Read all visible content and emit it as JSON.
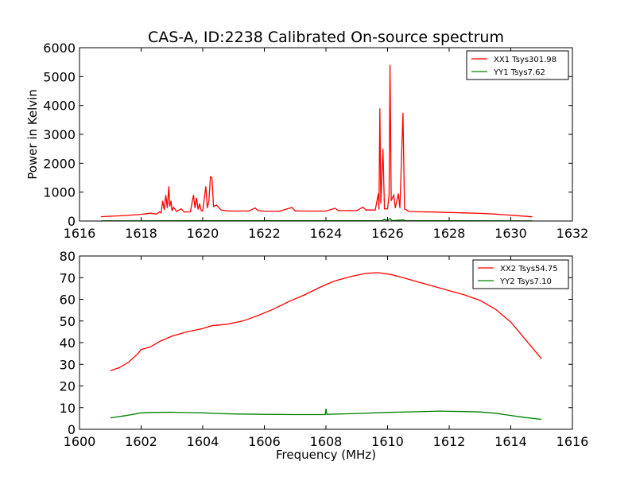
{
  "chart_data": [
    {
      "type": "line",
      "title": "CAS-A, ID:2238 Calibrated On-source spectrum",
      "xlabel": "",
      "ylabel": "Power in Kelvin",
      "xlim": [
        1616,
        1632
      ],
      "ylim": [
        0,
        6000
      ],
      "xticks": [
        1616,
        1618,
        1620,
        1622,
        1624,
        1626,
        1628,
        1630,
        1632
      ],
      "yticks": [
        0,
        1000,
        2000,
        3000,
        4000,
        5000,
        6000
      ],
      "legend_position": "top-right",
      "grid": false,
      "series": [
        {
          "name": "XX1 Tsys301.98",
          "color": "#ff0000",
          "points": [
            [
              1616.7,
              150
            ],
            [
              1617.0,
              165
            ],
            [
              1617.5,
              190
            ],
            [
              1618.0,
              230
            ],
            [
              1618.3,
              270
            ],
            [
              1618.5,
              240
            ],
            [
              1618.6,
              320
            ],
            [
              1618.65,
              280
            ],
            [
              1618.7,
              700
            ],
            [
              1618.75,
              380
            ],
            [
              1618.8,
              900
            ],
            [
              1618.85,
              450
            ],
            [
              1618.9,
              1200
            ],
            [
              1618.93,
              500
            ],
            [
              1618.97,
              700
            ],
            [
              1619.0,
              350
            ],
            [
              1619.05,
              480
            ],
            [
              1619.15,
              330
            ],
            [
              1619.3,
              420
            ],
            [
              1619.4,
              310
            ],
            [
              1619.6,
              320
            ],
            [
              1619.7,
              900
            ],
            [
              1619.75,
              450
            ],
            [
              1619.8,
              800
            ],
            [
              1619.85,
              400
            ],
            [
              1619.9,
              600
            ],
            [
              1619.95,
              360
            ],
            [
              1620.0,
              350
            ],
            [
              1620.1,
              1200
            ],
            [
              1620.15,
              450
            ],
            [
              1620.2,
              700
            ],
            [
              1620.25,
              1530
            ],
            [
              1620.3,
              1500
            ],
            [
              1620.35,
              500
            ],
            [
              1620.45,
              550
            ],
            [
              1620.6,
              380
            ],
            [
              1620.8,
              350
            ],
            [
              1621.0,
              345
            ],
            [
              1621.5,
              350
            ],
            [
              1621.7,
              450
            ],
            [
              1621.8,
              360
            ],
            [
              1622.0,
              340
            ],
            [
              1622.5,
              340
            ],
            [
              1622.9,
              470
            ],
            [
              1623.0,
              350
            ],
            [
              1623.5,
              345
            ],
            [
              1624.0,
              345
            ],
            [
              1624.3,
              440
            ],
            [
              1624.4,
              360
            ],
            [
              1625.0,
              360
            ],
            [
              1625.2,
              480
            ],
            [
              1625.3,
              380
            ],
            [
              1625.6,
              380
            ],
            [
              1625.7,
              950
            ],
            [
              1625.72,
              400
            ],
            [
              1625.75,
              3900
            ],
            [
              1625.78,
              600
            ],
            [
              1625.85,
              2500
            ],
            [
              1625.9,
              420
            ],
            [
              1626.0,
              420
            ],
            [
              1626.05,
              900
            ],
            [
              1626.08,
              5400
            ],
            [
              1626.12,
              700
            ],
            [
              1626.2,
              900
            ],
            [
              1626.25,
              450
            ],
            [
              1626.35,
              950
            ],
            [
              1626.4,
              450
            ],
            [
              1626.5,
              3750
            ],
            [
              1626.55,
              420
            ],
            [
              1626.7,
              330
            ],
            [
              1627.0,
              320
            ],
            [
              1627.5,
              310
            ],
            [
              1628.0,
              295
            ],
            [
              1628.5,
              280
            ],
            [
              1629.0,
              265
            ],
            [
              1629.5,
              240
            ],
            [
              1630.0,
              200
            ],
            [
              1630.7,
              145
            ]
          ]
        },
        {
          "name": "YY1 Tsys7.62",
          "color": "#008000",
          "points": [
            [
              1616.7,
              5
            ],
            [
              1618.0,
              6
            ],
            [
              1620.0,
              7
            ],
            [
              1622.0,
              7
            ],
            [
              1624.0,
              7
            ],
            [
              1625.8,
              8
            ],
            [
              1625.9,
              60
            ],
            [
              1626.0,
              10
            ],
            [
              1626.08,
              90
            ],
            [
              1626.15,
              10
            ],
            [
              1626.5,
              40
            ],
            [
              1626.6,
              8
            ],
            [
              1628.0,
              7
            ],
            [
              1630.7,
              5
            ]
          ]
        }
      ]
    },
    {
      "type": "line",
      "title": "",
      "xlabel": "Frequency (MHz)",
      "ylabel": "",
      "xlim": [
        1600,
        1616
      ],
      "ylim": [
        0,
        80
      ],
      "xticks": [
        1600,
        1602,
        1604,
        1606,
        1608,
        1610,
        1612,
        1614,
        1616
      ],
      "yticks": [
        0,
        10,
        20,
        30,
        40,
        50,
        60,
        70,
        80
      ],
      "legend_position": "top-right",
      "grid": false,
      "series": [
        {
          "name": "XX2 Tsys54.75",
          "color": "#ff0000",
          "points": [
            [
              1601.0,
              27.0
            ],
            [
              1601.3,
              28.5
            ],
            [
              1601.6,
              31.0
            ],
            [
              1601.9,
              35.0
            ],
            [
              1602.0,
              36.8
            ],
            [
              1602.3,
              38.0
            ],
            [
              1602.6,
              40.5
            ],
            [
              1603.0,
              43.0
            ],
            [
              1603.5,
              45.0
            ],
            [
              1604.0,
              46.5
            ],
            [
              1604.3,
              47.8
            ],
            [
              1604.8,
              48.5
            ],
            [
              1605.3,
              50.0
            ],
            [
              1605.8,
              52.5
            ],
            [
              1606.3,
              55.5
            ],
            [
              1606.8,
              59.0
            ],
            [
              1607.3,
              62.0
            ],
            [
              1607.8,
              65.5
            ],
            [
              1608.0,
              66.8
            ],
            [
              1608.3,
              68.5
            ],
            [
              1608.8,
              70.5
            ],
            [
              1609.3,
              72.0
            ],
            [
              1609.7,
              72.3
            ],
            [
              1610.1,
              71.5
            ],
            [
              1610.5,
              70.0
            ],
            [
              1611.0,
              68.0
            ],
            [
              1611.5,
              66.0
            ],
            [
              1612.0,
              64.0
            ],
            [
              1612.5,
              62.0
            ],
            [
              1613.0,
              59.5
            ],
            [
              1613.5,
              55.5
            ],
            [
              1614.0,
              49.5
            ],
            [
              1614.5,
              41.0
            ],
            [
              1615.0,
              32.5
            ]
          ]
        },
        {
          "name": "YY2 Tsys7.10",
          "color": "#008000",
          "points": [
            [
              1601.0,
              5.3
            ],
            [
              1601.5,
              6.3
            ],
            [
              1602.0,
              7.6
            ],
            [
              1602.5,
              7.8
            ],
            [
              1603.0,
              7.9
            ],
            [
              1603.5,
              7.7
            ],
            [
              1604.0,
              7.6
            ],
            [
              1604.5,
              7.3
            ],
            [
              1605.0,
              7.1
            ],
            [
              1606.0,
              6.9
            ],
            [
              1607.0,
              6.8
            ],
            [
              1607.98,
              6.8
            ],
            [
              1608.0,
              9.5
            ],
            [
              1608.03,
              6.9
            ],
            [
              1609.0,
              7.3
            ],
            [
              1610.0,
              7.8
            ],
            [
              1611.0,
              8.1
            ],
            [
              1611.7,
              8.4
            ],
            [
              1612.0,
              8.3
            ],
            [
              1612.5,
              8.2
            ],
            [
              1613.0,
              8.0
            ],
            [
              1613.5,
              7.4
            ],
            [
              1614.0,
              6.4
            ],
            [
              1614.5,
              5.4
            ],
            [
              1615.0,
              4.6
            ]
          ]
        }
      ]
    }
  ]
}
